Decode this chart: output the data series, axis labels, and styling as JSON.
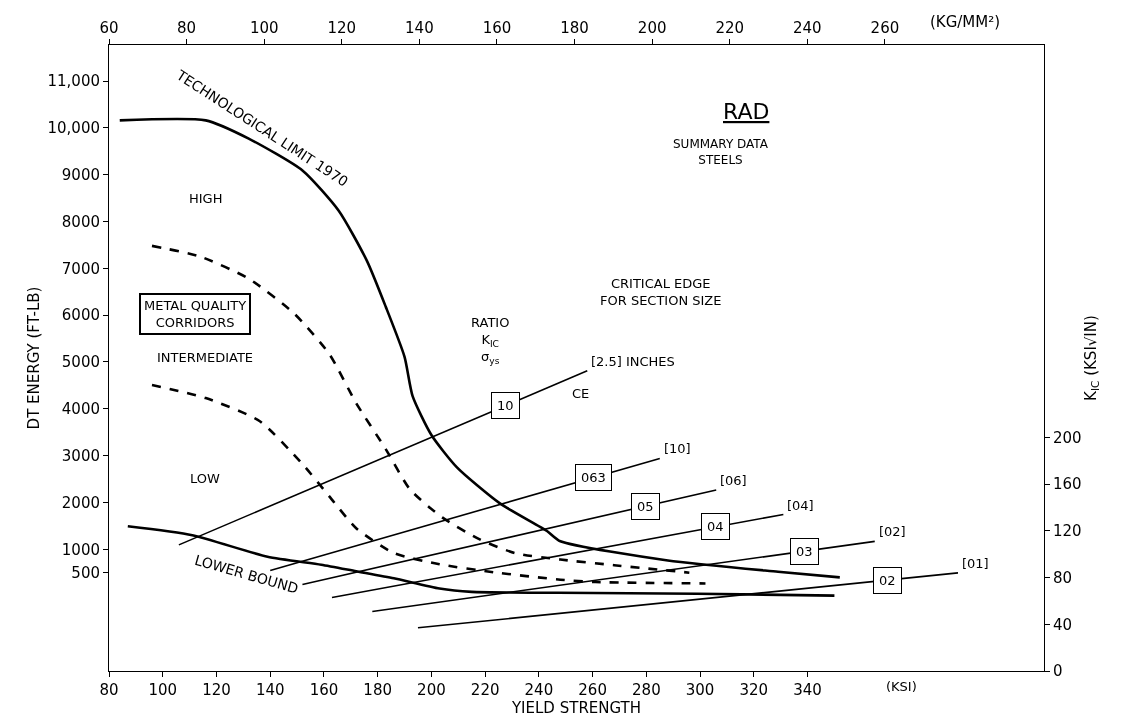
{
  "chart_data": {
    "type": "line",
    "title": "RAD",
    "subtitle": "SUMMARY DATA\nSTEELS",
    "xlabel": "YIELD STRENGTH",
    "ylabel": "DT ENERGY (FT-LB)",
    "y2label": "K$_{IC}$ (KSI√IN)",
    "x2label": "(KG/MM²)",
    "xlim": [
      80,
      428
    ],
    "xticks": [
      80,
      100,
      120,
      140,
      160,
      180,
      200,
      220,
      240,
      260,
      280,
      300,
      320,
      340
    ],
    "x2lim": [
      60,
      301
    ],
    "x2ticks": [
      60,
      80,
      100,
      120,
      140,
      160,
      180,
      200,
      220,
      240,
      260
    ],
    "ylim": [
      -1600,
      11770
    ],
    "yticks": [
      500,
      1000,
      2000,
      3000,
      4000,
      5000,
      6000,
      7000,
      8000,
      9000,
      {
        "value": 10000,
        "label": "10,000"
      },
      {
        "value": 11000,
        "label": "11,000"
      }
    ],
    "y2lim": [
      0,
      536
    ],
    "y2ticks": [
      0,
      40,
      80,
      120,
      160,
      200
    ],
    "marker": "none",
    "annotations": [
      "HIGH",
      "INTERMEDIATE",
      "LOW",
      "METAL QUALITY\nCORRIDORS",
      "RATIO\nK$_{IC}$\nσ$_{ys}$",
      "CRITICAL EDGE\nFOR SECTION SIZE",
      "CE",
      "(KSI)",
      "[2.5] INCHES",
      "[10]",
      "[06]",
      "[04]",
      "[02]",
      "[01]"
    ],
    "series": [
      {
        "name": "TECHNOLOGICAL LIMIT 1970",
        "color": "#000000",
        "line_style": "solid",
        "x": [
          84,
          116,
          132,
          152,
          165.5,
          176,
          183,
          190,
          193,
          200,
          209.5,
          225.5,
          243,
          248,
          288,
          329,
          352
        ],
        "values": [
          10160,
          10160,
          9770,
          9090,
          8230,
          7160,
          6180,
          5110,
          4270,
          3440,
          2750,
          1980,
          1390,
          1170,
          760,
          520,
          400
        ]
      },
      {
        "name": "LOWER BOUND",
        "color": "#000000",
        "line_style": "solid",
        "x": [
          87,
          111,
          139,
          159,
          172,
          186,
          203,
          215,
          247,
          299,
          350
        ],
        "values": [
          1490,
          1300,
          840,
          670,
          530,
          380,
          160,
          90,
          70,
          50,
          10
        ]
      },
      {
        "color": "#000000",
        "line_style": "dashed",
        "x": [
          96,
          114,
          132,
          149,
          162,
          172,
          183,
          192,
          204,
          218,
          231,
          248,
          268,
          296
        ],
        "values": [
          7480,
          7250,
          6780,
          6030,
          5170,
          4120,
          3140,
          2280,
          1680,
          1210,
          920,
          780,
          660,
          500
        ]
      },
      {
        "color": "#000000",
        "line_style": "dashed",
        "x": [
          96,
          116,
          136,
          152,
          162,
          172,
          186,
          203,
          223,
          248,
          261,
          302
        ],
        "values": [
          4510,
          4230,
          3740,
          2820,
          2130,
          1450,
          920,
          680,
          510,
          350,
          300,
          270
        ]
      },
      {
        "name": "10",
        "color": "#000000",
        "line_style": "solid",
        "axis": "y2",
        "x": [
          106,
          258
        ],
        "values": [
          108,
          257
        ]
      },
      {
        "name": "063",
        "color": "#000000",
        "line_style": "solid",
        "axis": "y2",
        "x": [
          140,
          285
        ],
        "values": [
          86,
          182
        ]
      },
      {
        "name": "05",
        "color": "#000000",
        "line_style": "solid",
        "axis": "y2",
        "x": [
          152,
          306
        ],
        "values": [
          74,
          155
        ]
      },
      {
        "name": "04",
        "color": "#000000",
        "line_style": "solid",
        "axis": "y2",
        "x": [
          163,
          331
        ],
        "values": [
          63,
          134
        ]
      },
      {
        "name": "03",
        "color": "#000000",
        "line_style": "solid",
        "axis": "y2",
        "x": [
          178,
          365
        ],
        "values": [
          51,
          111
        ]
      },
      {
        "name": "02",
        "color": "#000000",
        "line_style": "solid",
        "axis": "y2",
        "x": [
          195,
          396
        ],
        "values": [
          37,
          84
        ]
      }
    ]
  }
}
